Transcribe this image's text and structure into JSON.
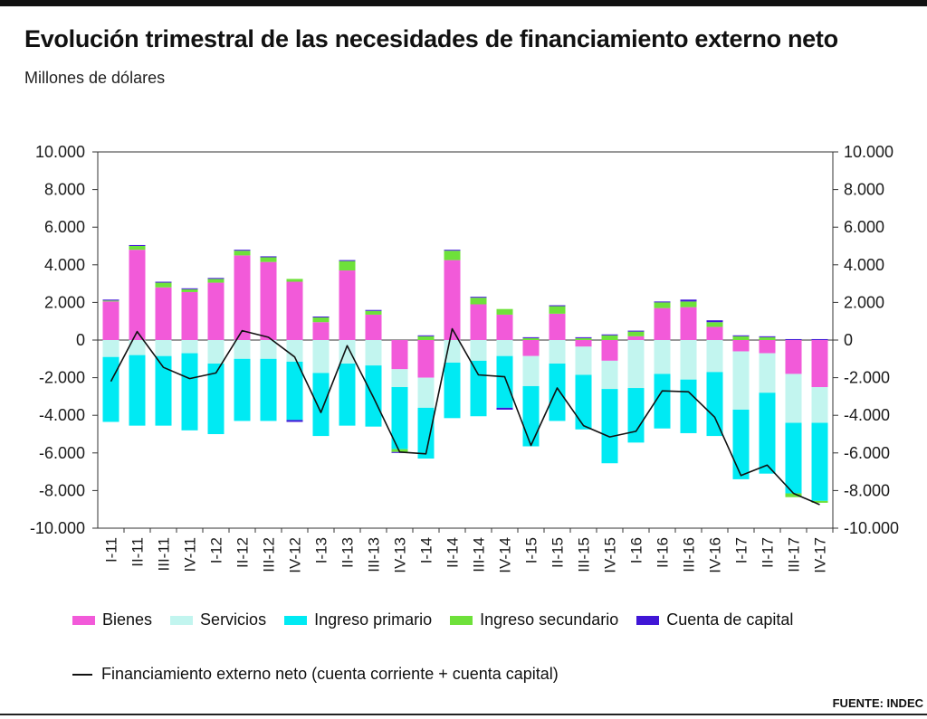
{
  "header": {
    "title": "Evolución trimestral de las necesidades de financiamiento externo neto",
    "subtitle": "Millones de dólares"
  },
  "legend": {
    "bienes": "Bienes",
    "servicios": "Servicios",
    "ingreso_primario": "Ingreso primario",
    "ingreso_secundario": "Ingreso secundario",
    "cuenta_capital": "Cuenta de capital",
    "financiamiento": "Financiamiento externo neto (cuenta corriente + cuenta capital)"
  },
  "source": "FUENTE: INDEC",
  "colors": {
    "bienes": "#f25ad9",
    "servicios": "#c2f5ef",
    "ingreso_primario": "#00eaf3",
    "ingreso_secundario": "#6ee13a",
    "cuenta_capital": "#4016d6",
    "line": "#111111",
    "grid": "#333333"
  },
  "chart_data": {
    "type": "bar",
    "stacked": true,
    "title": "Evolución trimestral de las necesidades de financiamiento externo neto",
    "subtitle": "Millones de dólares",
    "ylim": [
      -10000,
      10000
    ],
    "y_ticks": [
      10000,
      8000,
      6000,
      4000,
      2000,
      0,
      -2000,
      -4000,
      -6000,
      -8000,
      -10000
    ],
    "y_tick_labels": [
      "10.000",
      "8.000",
      "6.000",
      "4.000",
      "2.000",
      "0",
      "-2.000",
      "-4.000",
      "-6.000",
      "-8.000",
      "-10.000"
    ],
    "secondary_axis": true,
    "grid": true,
    "legend_position": "bottom",
    "categories": [
      "I-11",
      "II-11",
      "III-11",
      "IV-11",
      "I-12",
      "II-12",
      "III-12",
      "IV-12",
      "I-13",
      "II-13",
      "III-13",
      "IV-13",
      "I-14",
      "II-14",
      "III-14",
      "IV-14",
      "I-15",
      "II-15",
      "III-15",
      "IV-15",
      "I-16",
      "II-16",
      "III-16",
      "IV-16",
      "I-17",
      "II-17",
      "III-17",
      "IV-17"
    ],
    "series": [
      {
        "name": "Bienes",
        "type": "bar",
        "values": [
          2050,
          4800,
          2800,
          2550,
          3050,
          4500,
          4150,
          3100,
          950,
          3700,
          1350,
          -1550,
          -2000,
          4250,
          1900,
          1350,
          -850,
          1400,
          -350,
          -1100,
          200,
          1700,
          1750,
          700,
          -600,
          -700,
          -1800,
          -2500
        ]
      },
      {
        "name": "Servicios",
        "type": "bar",
        "values": [
          -900,
          -800,
          -850,
          -700,
          -1250,
          -1000,
          -1000,
          -1150,
          -1750,
          -1250,
          -1350,
          -950,
          -1600,
          -1200,
          -1100,
          -850,
          -1600,
          -1250,
          -1500,
          -1500,
          -2550,
          -1800,
          -2100,
          -1700,
          -3100,
          -2100,
          -2600,
          -1900
        ]
      },
      {
        "name": "Ingreso primario",
        "type": "bar",
        "values": [
          -3450,
          -3750,
          -3700,
          -4100,
          -3750,
          -3300,
          -3300,
          -3100,
          -3350,
          -3300,
          -3250,
          -3300,
          -2700,
          -2950,
          -2950,
          -2750,
          -3200,
          -3050,
          -2900,
          -3950,
          -2900,
          -2900,
          -2850,
          -3400,
          -3700,
          -4300,
          -3750,
          -4150
        ]
      },
      {
        "name": "Ingreso secundario",
        "type": "bar",
        "values": [
          50,
          200,
          250,
          150,
          200,
          250,
          250,
          150,
          250,
          500,
          200,
          -150,
          200,
          500,
          350,
          300,
          100,
          400,
          100,
          250,
          250,
          300,
          300,
          250,
          200,
          150,
          -200,
          -100
        ]
      },
      {
        "name": "Cuenta de capital",
        "type": "bar",
        "values": [
          50,
          50,
          50,
          50,
          50,
          50,
          50,
          -100,
          50,
          50,
          50,
          -50,
          50,
          50,
          50,
          -100,
          50,
          50,
          50,
          50,
          50,
          50,
          100,
          100,
          50,
          50,
          50,
          50
        ]
      }
    ],
    "line_series": {
      "name": "Financiamiento externo neto (cuenta corriente + cuenta capital)",
      "type": "line",
      "values": [
        -2200,
        450,
        -1450,
        -2050,
        -1750,
        500,
        150,
        -900,
        -3850,
        -300,
        -3050,
        -5950,
        -6050,
        600,
        -1850,
        -1950,
        -5600,
        -2550,
        -4550,
        -5150,
        -4850,
        -2700,
        -2750,
        -4100,
        -7200,
        -6650,
        -8150,
        -8750
      ]
    }
  }
}
